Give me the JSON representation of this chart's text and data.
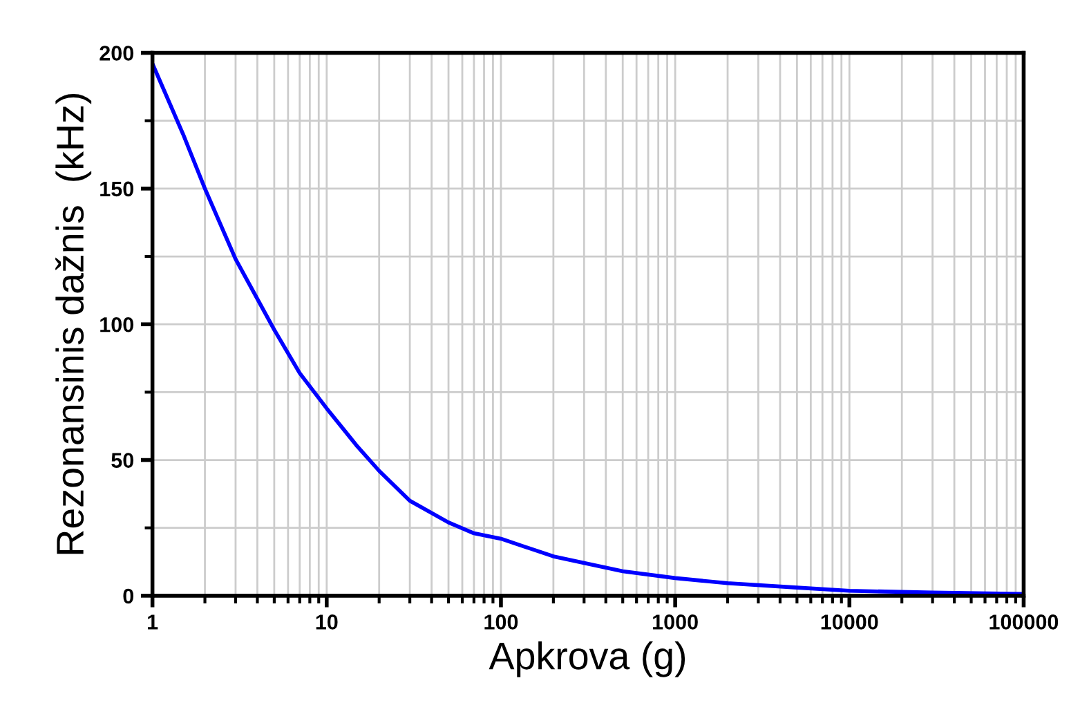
{
  "chart_data": {
    "type": "line",
    "xlabel": "Apkrova (g)",
    "ylabel": "Rezonansinis dažnis  (kHz)",
    "log": "x",
    "x": [
      1,
      1.5,
      2,
      3,
      5,
      7,
      10,
      15,
      20,
      30,
      50,
      70,
      100,
      200,
      500,
      1000,
      2000,
      5000,
      10000,
      30000,
      100000
    ],
    "series": [
      {
        "color": "#0000ff",
        "values": [
          196,
          170,
          150,
          124,
          98,
          82,
          69,
          55,
          46,
          35,
          27,
          23,
          21,
          14.5,
          9,
          6.5,
          4.6,
          3,
          1.8,
          1.2,
          0.7
        ]
      }
    ],
    "xlim": [
      1,
      100000
    ],
    "xticks": [
      1,
      10,
      100,
      1000,
      10000,
      100000
    ],
    "ylim": [
      0,
      200
    ],
    "yticks": [
      0,
      50,
      100,
      150,
      200
    ],
    "grid": true,
    "marker": "none",
    "line_style": "solid"
  }
}
